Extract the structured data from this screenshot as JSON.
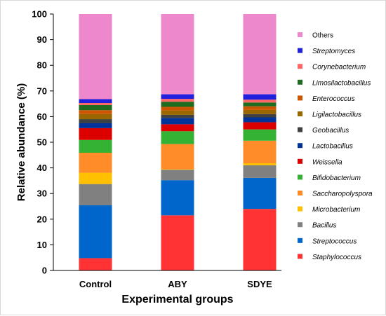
{
  "chart_data": {
    "type": "bar",
    "stacked": true,
    "title": "",
    "xlabel": "Experimental groups",
    "ylabel": "Relative abundance (%)",
    "ylim": [
      0,
      100
    ],
    "yticks": [
      0,
      10,
      20,
      30,
      40,
      50,
      60,
      70,
      80,
      90,
      100
    ],
    "grid": false,
    "legend_position": "right",
    "categories": [
      "Control",
      "ABY",
      "SDYE"
    ],
    "series": [
      {
        "name": "Staphylococcus",
        "color": "#ff3333",
        "values": [
          4.8,
          21.5,
          24.0
        ]
      },
      {
        "name": "Streptococcus",
        "color": "#0066cc",
        "values": [
          20.6,
          13.7,
          12.1
        ]
      },
      {
        "name": "Bacillus",
        "color": "#808080",
        "values": [
          8.3,
          4.1,
          4.9
        ]
      },
      {
        "name": "Microbacterium",
        "color": "#ffc000",
        "values": [
          4.4,
          0.2,
          0.8
        ]
      },
      {
        "name": "Saccharopolyspora",
        "color": "#ff8c28",
        "values": [
          7.8,
          9.8,
          8.8
        ]
      },
      {
        "name": "Bifidobacterium",
        "color": "#33b233",
        "values": [
          5.0,
          5.0,
          4.4
        ]
      },
      {
        "name": "Weissella",
        "color": "#dd0000",
        "values": [
          4.6,
          2.7,
          2.8
        ]
      },
      {
        "name": "Lactobacillus",
        "color": "#003399",
        "values": [
          2.0,
          2.5,
          1.9
        ]
      },
      {
        "name": "Geobacillus",
        "color": "#404040",
        "values": [
          1.5,
          1.2,
          1.3
        ]
      },
      {
        "name": "Ligilactobacillus",
        "color": "#996600",
        "values": [
          2.0,
          1.7,
          1.6
        ]
      },
      {
        "name": "Enterococcus",
        "color": "#cc5500",
        "values": [
          1.5,
          1.4,
          1.4
        ]
      },
      {
        "name": "Limosilactobacillus",
        "color": "#1f6b1f",
        "values": [
          2.0,
          2.0,
          1.5
        ]
      },
      {
        "name": "Corynebacterium",
        "color": "#ff6666",
        "values": [
          0.8,
          1.1,
          1.1
        ]
      },
      {
        "name": "Streptomyces",
        "color": "#2020dd",
        "values": [
          1.5,
          1.8,
          2.1
        ]
      },
      {
        "name": "Others",
        "color": "#ee88cc",
        "values": [
          33.2,
          31.3,
          31.3
        ]
      }
    ]
  }
}
